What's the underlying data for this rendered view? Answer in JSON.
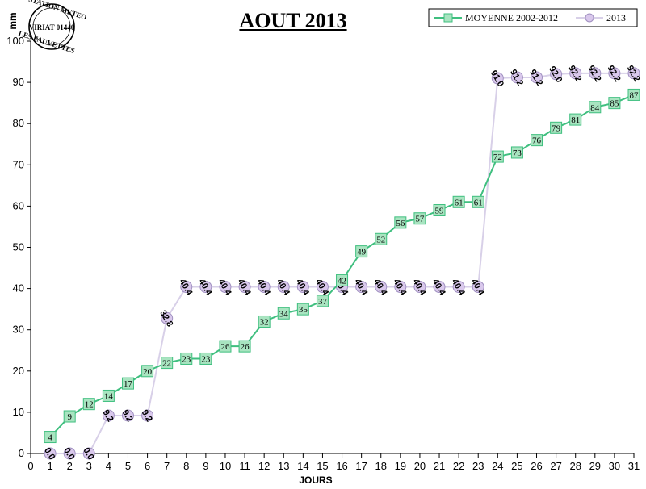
{
  "logo": {
    "line1": "STATION METEO",
    "line2": "VIRIAT 01440",
    "line3": "LES FAUVETTES"
  },
  "chart_data": {
    "type": "line",
    "title": "AOUT 2013",
    "xlabel": "JOURS",
    "ylabel": "mm",
    "xlim": [
      0,
      31
    ],
    "ylim": [
      0,
      100
    ],
    "x_ticks": [
      0,
      1,
      2,
      3,
      4,
      5,
      6,
      7,
      8,
      9,
      10,
      11,
      12,
      13,
      14,
      15,
      16,
      17,
      18,
      19,
      20,
      21,
      22,
      23,
      24,
      25,
      26,
      27,
      28,
      29,
      30,
      31
    ],
    "y_ticks": [
      0,
      10,
      20,
      30,
      40,
      50,
      60,
      70,
      80,
      90,
      100
    ],
    "legend_position": "top-right",
    "series": [
      {
        "name": "MOYENNE 2002-2012",
        "color": "#3fbf7f",
        "marker_fill": "#a8e4c0",
        "marker": "square",
        "x": [
          1,
          2,
          3,
          4,
          5,
          6,
          7,
          8,
          9,
          10,
          11,
          12,
          13,
          14,
          15,
          16,
          17,
          18,
          19,
          20,
          21,
          22,
          23,
          24,
          25,
          26,
          27,
          28,
          29,
          30,
          31
        ],
        "values": [
          4,
          9,
          12,
          14,
          17,
          20,
          22,
          23,
          23,
          26,
          26,
          32,
          34,
          35,
          37,
          42,
          49,
          52,
          56,
          57,
          59,
          61,
          61,
          72,
          73,
          76,
          79,
          81,
          84,
          85,
          87
        ],
        "labels": [
          "4",
          "9",
          "12",
          "14",
          "17",
          "20",
          "22",
          "23",
          "23",
          "26",
          "26",
          "32",
          "34",
          "35",
          "37",
          "42",
          "49",
          "52",
          "56",
          "57",
          "59",
          "61",
          "61",
          "72",
          "73",
          "76",
          "79",
          "81",
          "84",
          "85",
          "87"
        ]
      },
      {
        "name": "2013",
        "color": "#d8d0e8",
        "marker_fill": "#d9c8ec",
        "marker": "circle",
        "x": [
          1,
          2,
          3,
          4,
          5,
          6,
          7,
          8,
          9,
          10,
          11,
          12,
          13,
          14,
          15,
          16,
          17,
          18,
          19,
          20,
          21,
          22,
          23,
          24,
          25,
          26,
          27,
          28,
          29,
          30,
          31
        ],
        "values": [
          0.0,
          0.0,
          0.0,
          9.2,
          9.2,
          9.2,
          32.8,
          40.4,
          40.4,
          40.4,
          40.4,
          40.4,
          40.4,
          40.4,
          40.4,
          40.4,
          40.4,
          40.4,
          40.4,
          40.4,
          40.4,
          40.4,
          40.4,
          91.0,
          91.2,
          91.2,
          92.0,
          92.2,
          92.2,
          92.2,
          92.2
        ],
        "labels": [
          "0.0",
          "0.0",
          "0.0",
          "9.2",
          "9.2",
          "9.2",
          "32.8",
          "40.4",
          "40.4",
          "40.4",
          "40.4",
          "40.4",
          "40.4",
          "40.4",
          "40.4",
          "40.4",
          "40.4",
          "40.4",
          "40.4",
          "40.4",
          "40.4",
          "40.4",
          "40.4",
          "91.0",
          "91.2",
          "91.2",
          "92.0",
          "92.2",
          "92.2",
          "92.2",
          "92.2"
        ]
      }
    ]
  }
}
